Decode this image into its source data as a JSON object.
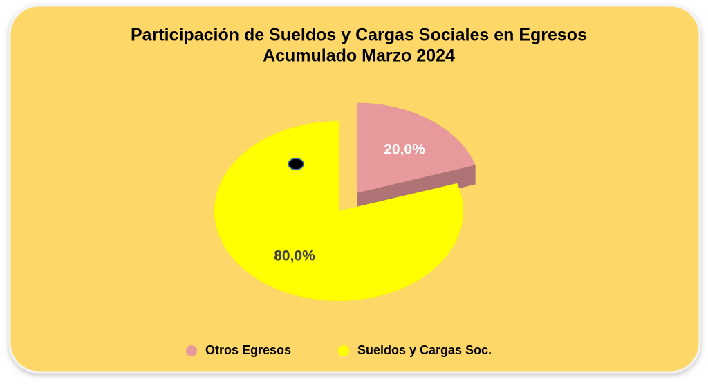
{
  "chart_data": {
    "type": "pie",
    "title": [
      "Participación de Sueldos y Cargas Sociales en Egresos",
      "Acumulado Marzo 2024"
    ],
    "categories": [
      "Otros Egresos",
      "Sueldos y Cargas Soc."
    ],
    "values": [
      20,
      80
    ],
    "value_labels": [
      "20,0%",
      "80,0%"
    ],
    "colors": [
      "#e8999b",
      "#ffff00"
    ],
    "legend": "bottom"
  }
}
